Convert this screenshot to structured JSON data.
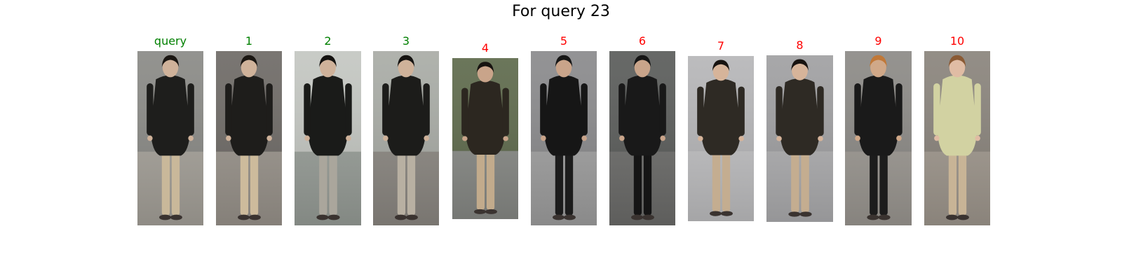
{
  "title": "For query 23",
  "colors": {
    "correct": "#008000",
    "wrong": "#ff0000"
  },
  "panels": [
    {
      "label": "query",
      "status": "correct",
      "bg": "#8a8a86",
      "ground": "#a8a49c",
      "jacket": "#1e1e1c",
      "pants": "#c9b89a",
      "hair": "#1a1612",
      "skin": "#cfb29a"
    },
    {
      "label": "1",
      "status": "correct",
      "bg": "#6e6a66",
      "ground": "#9c968e",
      "jacket": "#1e1d1b",
      "pants": "#cdbb9c",
      "hair": "#1a1612",
      "skin": "#cfb29a"
    },
    {
      "label": "2",
      "status": "correct",
      "bg": "#c4c7c2",
      "ground": "#9aa09a",
      "jacket": "#1a1b19",
      "pants": "#aaa69c",
      "hair": "#141210",
      "skin": "#cfb29a"
    },
    {
      "label": "3",
      "status": "correct",
      "bg": "#a9aca6",
      "ground": "#8e8a84",
      "jacket": "#1c1c1a",
      "pants": "#b8b0a2",
      "hair": "#141210",
      "skin": "#cfb29a"
    },
    {
      "label": "4",
      "status": "wrong",
      "bg": "#5e6a4c",
      "ground": "#8a8c88",
      "jacket": "#2c2720",
      "pants": "#c2ab8c",
      "hair": "#171310",
      "skin": "#c9a48a"
    },
    {
      "label": "5",
      "status": "wrong",
      "bg": "#8a8a8c",
      "ground": "#a2a2a2",
      "jacket": "#161616",
      "pants": "#1c1c1c",
      "hair": "#161616",
      "skin": "#c9a48a"
    },
    {
      "label": "6",
      "status": "wrong",
      "bg": "#5a5c5a",
      "ground": "#6e6e6c",
      "jacket": "#191919",
      "pants": "#151515",
      "hair": "#151515",
      "skin": "#c9a48a"
    },
    {
      "label": "7",
      "status": "wrong",
      "bg": "#b6b6b8",
      "ground": "#c2c2c4",
      "jacket": "#2e2a24",
      "pants": "#c4ad90",
      "hair": "#171310",
      "skin": "#d6b49a"
    },
    {
      "label": "8",
      "status": "wrong",
      "bg": "#a0a0a2",
      "ground": "#b0b0b2",
      "jacket": "#2e2a24",
      "pants": "#c4ad90",
      "hair": "#171310",
      "skin": "#d6b49a"
    },
    {
      "label": "9",
      "status": "wrong",
      "bg": "#8c8a86",
      "ground": "#9e9a94",
      "jacket": "#1a1a1a",
      "pants": "#1c1c1c",
      "hair": "#c07838",
      "skin": "#d0a888"
    },
    {
      "label": "10",
      "status": "wrong",
      "bg": "#8a847c",
      "ground": "#a29a90",
      "jacket": "#d2d2a2",
      "pants": "#c8b496",
      "hair": "#8a5a34",
      "skin": "#e0bca4"
    }
  ]
}
